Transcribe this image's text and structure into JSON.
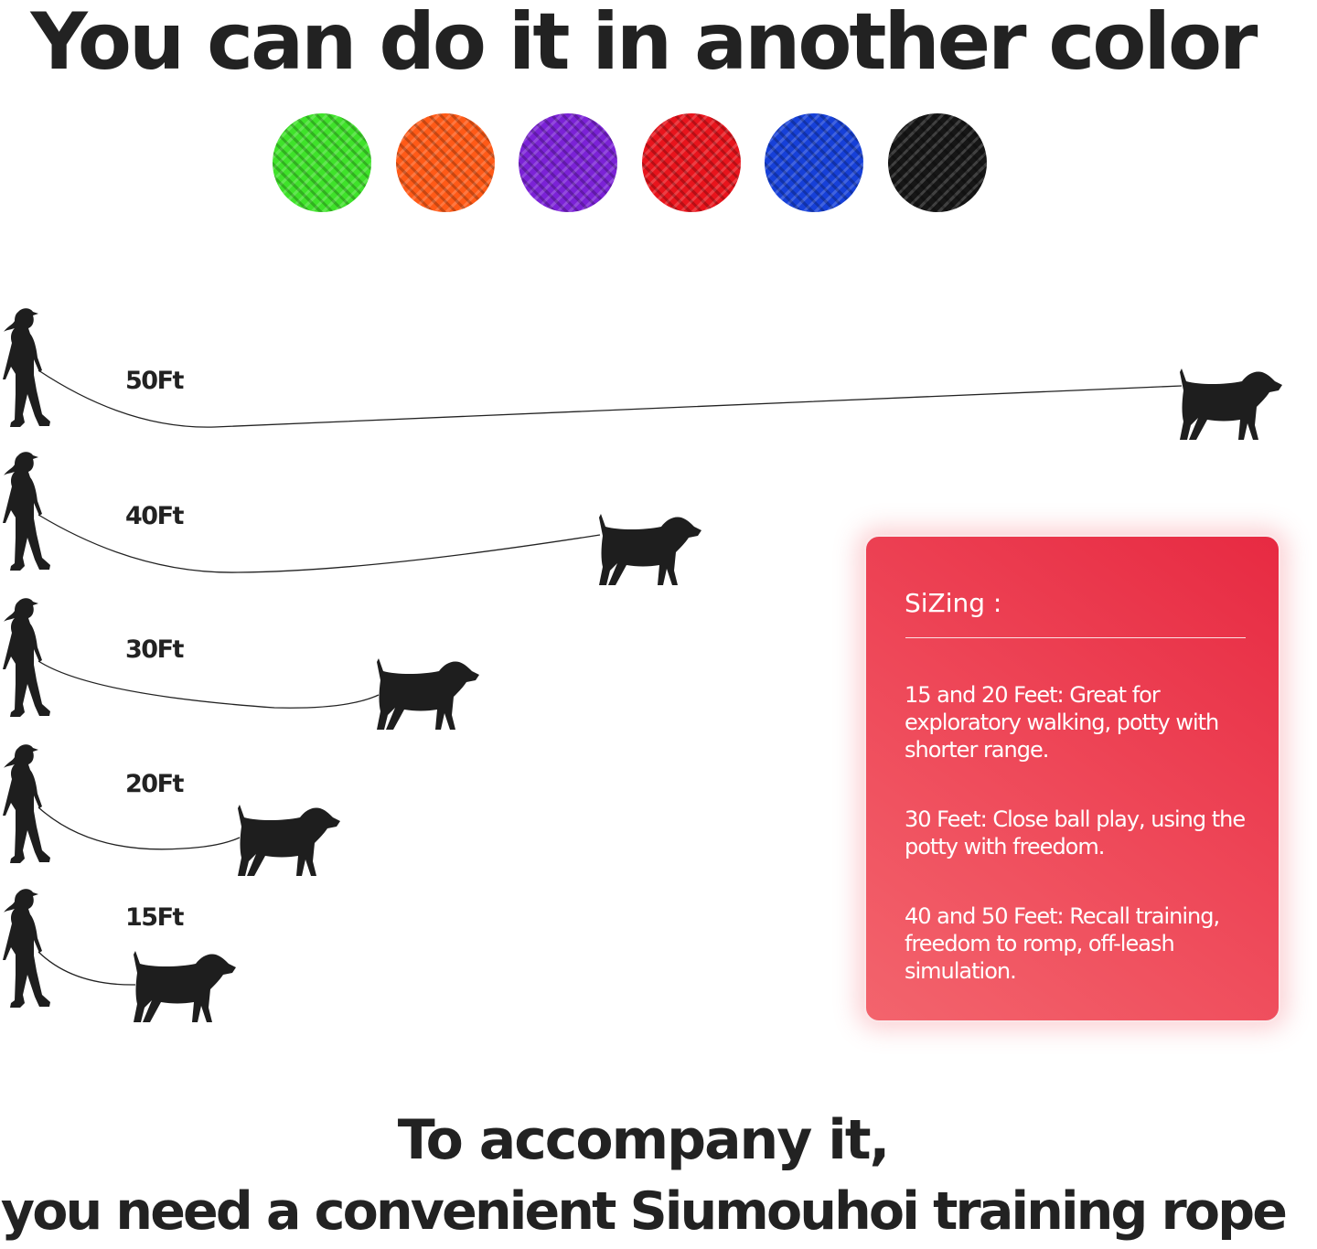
{
  "title": "You can do it in another color",
  "swatches": [
    {
      "name": "green",
      "color": "#3fe22a"
    },
    {
      "name": "orange",
      "color": "#ff5a17"
    },
    {
      "name": "purple",
      "color": "#7b22d6"
    },
    {
      "name": "red",
      "color": "#e8141c"
    },
    {
      "name": "blue",
      "color": "#1640d8"
    },
    {
      "name": "black",
      "color": "#161616"
    }
  ],
  "lengths": [
    "50Ft",
    "40Ft",
    "30Ft",
    "20Ft",
    "15Ft"
  ],
  "icons": {
    "person": "walking-person-icon",
    "dog": "dog-icon"
  },
  "card": {
    "title": "SiZing :",
    "items": [
      "15 and 20 Feet: Great for exploratory walking, potty with shorter range.",
      "30 Feet: Close ball play, using the potty with freedom.",
      "40 and 50 Feet: Recall training, freedom to romp, off-leash simulation."
    ],
    "accent": "#ec3a4e"
  },
  "bottom": {
    "line1": "To accompany it,",
    "line2": "you need a convenient Siumouhoi training rope"
  }
}
